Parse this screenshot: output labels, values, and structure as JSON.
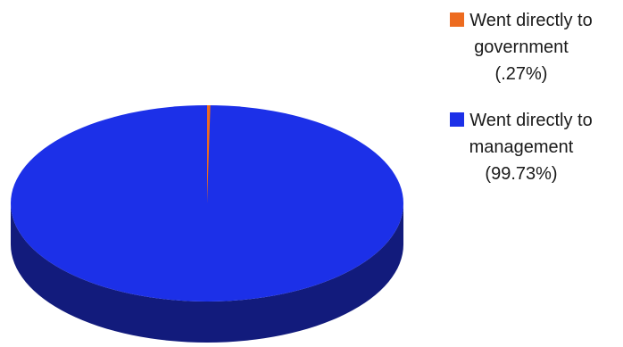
{
  "chart_data": {
    "type": "pie",
    "style": "3d",
    "title": "",
    "slices": [
      {
        "label": "Went directly to government",
        "value": 0.27,
        "value_label": "(.27%)",
        "color": "#ed6b1f"
      },
      {
        "label": "Went directly to management",
        "value": 99.73,
        "value_label": "(99.73%)",
        "color": "#1c30e8"
      }
    ],
    "side_color": "#121b7c",
    "legend_position": "right",
    "legend": [
      {
        "line1": "Went directly to",
        "line2": "government",
        "line3": "(.27%)"
      },
      {
        "line1": "Went directly to",
        "line2": "management",
        "line3": "(99.73%)"
      }
    ]
  }
}
